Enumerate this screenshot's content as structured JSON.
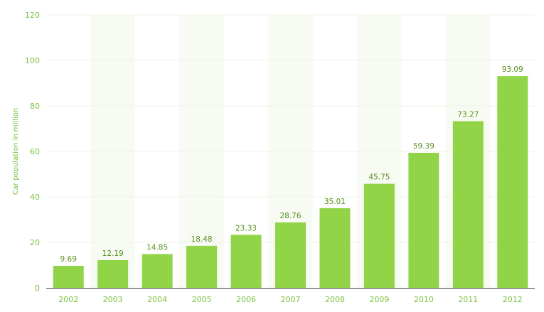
{
  "chart_data": {
    "type": "bar",
    "title": "",
    "xlabel": "",
    "ylabel": "Car population in million",
    "categories": [
      "2002",
      "2003",
      "2004",
      "2005",
      "2006",
      "2007",
      "2008",
      "2009",
      "2010",
      "2011",
      "2012"
    ],
    "values": [
      9.69,
      12.19,
      14.85,
      18.48,
      23.33,
      28.76,
      35.01,
      45.75,
      59.39,
      73.27,
      93.09
    ],
    "value_labels": [
      "9.69",
      "12.19",
      "14.85",
      "18.48",
      "23.33",
      "28.76",
      "35.01",
      "45.75",
      "59.39",
      "73.27",
      "93.09"
    ],
    "ylim": [
      0,
      120
    ],
    "yticks": [
      0,
      20,
      40,
      60,
      80,
      100,
      120
    ],
    "ytick_labels": [
      "0",
      "20",
      "40",
      "60",
      "80",
      "100",
      "120"
    ],
    "grid": true,
    "alternating_column_bands": true,
    "colors": {
      "bar": "#92d447",
      "band": "#f8fbf3",
      "grid": "#eef4e4",
      "axis": "#444444",
      "tick_text": "#7cc242",
      "data_label_text": "#5a8f1e"
    }
  }
}
